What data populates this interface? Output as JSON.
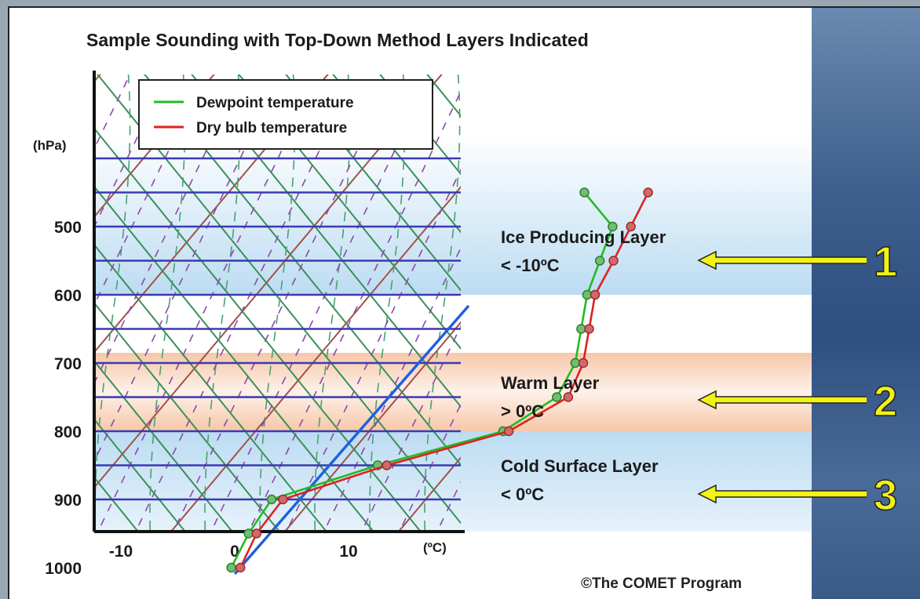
{
  "title": "Sample Sounding with Top-Down Method Layers Indicated",
  "copyright": "©The COMET Program",
  "colors": {
    "dewpoint": "#22bb22",
    "drybulb": "#dd2222",
    "isobar": "#3a3ab0",
    "isotherm": "#1f5fe0",
    "ice_band": "#bcdcf2",
    "warm_band": "#f6c7a8",
    "cold_band": "#bcdcf2",
    "arrow": "#f2f214"
  },
  "chart_data": {
    "type": "line",
    "title": "Sample Sounding with Top-Down Method Layers Indicated",
    "y_unit_label": "(hPa)",
    "x_unit_label": "(ºC)",
    "x_ticks": [
      "-10",
      "0",
      "10"
    ],
    "y_ticks": [
      "500",
      "600",
      "700",
      "800",
      "900",
      "1000"
    ],
    "series": [
      {
        "name": "Dewpoint temperature",
        "color": "#22bb22",
        "points": [
          {
            "p": 1000,
            "t": -0.3
          },
          {
            "p": 950,
            "t": -1.3
          },
          {
            "p": 900,
            "t": -1.8
          },
          {
            "p": 850,
            "t": 5.0
          },
          {
            "p": 800,
            "t": 13.5
          },
          {
            "p": 750,
            "t": 15.7
          },
          {
            "p": 700,
            "t": 14.8
          },
          {
            "p": 650,
            "t": 12.8
          },
          {
            "p": 600,
            "t": 10.8
          },
          {
            "p": 550,
            "t": 9.4
          },
          {
            "p": 500,
            "t": 8.0
          },
          {
            "p": 450,
            "t": 3.0
          }
        ]
      },
      {
        "name": "Dry bulb temperature",
        "color": "#dd2222",
        "points": [
          {
            "p": 1000,
            "t": 0.5
          },
          {
            "p": 950,
            "t": -0.6
          },
          {
            "p": 900,
            "t": -0.8
          },
          {
            "p": 850,
            "t": 5.8
          },
          {
            "p": 800,
            "t": 14.0
          },
          {
            "p": 750,
            "t": 16.7
          },
          {
            "p": 700,
            "t": 15.5
          },
          {
            "p": 650,
            "t": 13.5
          },
          {
            "p": 600,
            "t": 11.5
          },
          {
            "p": 550,
            "t": 10.6
          },
          {
            "p": 500,
            "t": 9.6
          },
          {
            "p": 450,
            "t": 8.6
          }
        ]
      }
    ],
    "layers": [
      {
        "num": "1",
        "name": "Ice Producing Layer",
        "condition": "< -10ºC"
      },
      {
        "num": "2",
        "name": "Warm Layer",
        "condition": "> 0ºC"
      },
      {
        "num": "3",
        "name": "Cold Surface Layer",
        "condition": "< 0ºC"
      }
    ]
  }
}
